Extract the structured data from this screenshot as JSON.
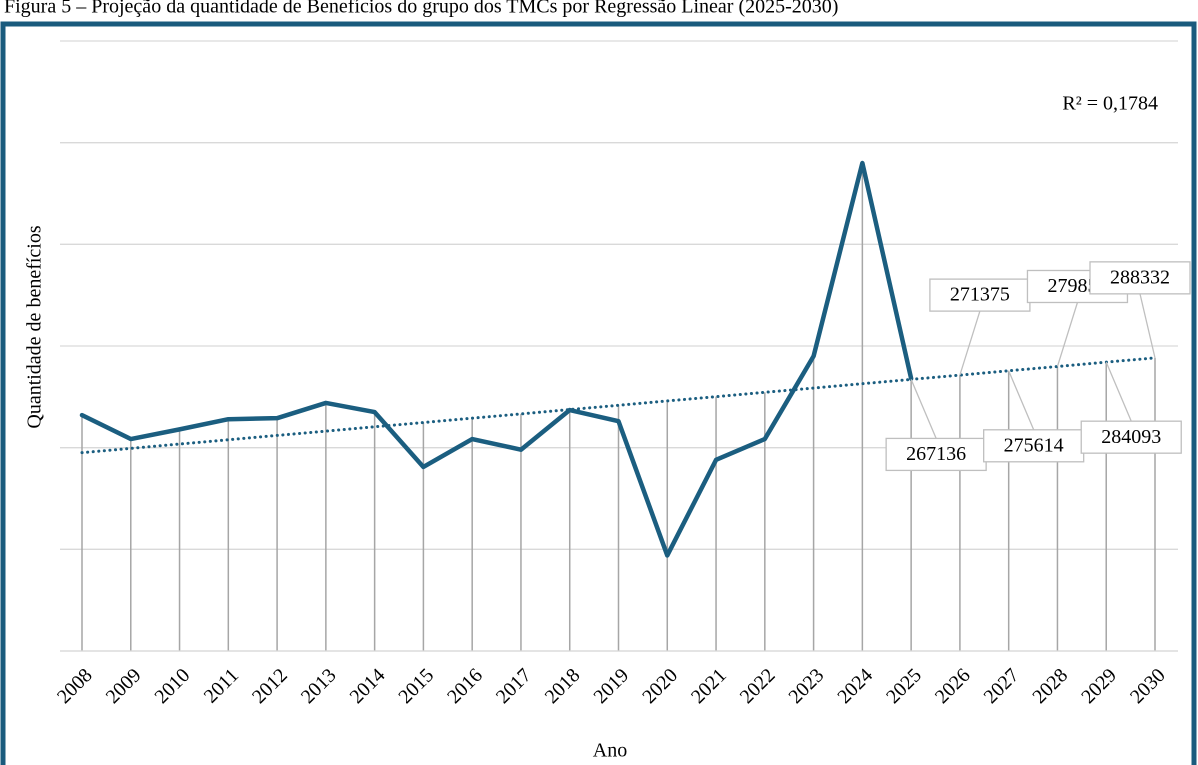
{
  "chart_data": {
    "type": "line",
    "title": "Figura 5 – Projeção da quantidade de Benefícios do grupo dos TMCs por Regressão Linear (2025-2030)",
    "annotation": "R² = 0,1784",
    "xlabel": "Ano",
    "ylabel": "Quantidade de benefícios",
    "categories": [
      "2008",
      "2009",
      "2010",
      "2011",
      "2012",
      "2013",
      "2014",
      "2015",
      "2016",
      "2017",
      "2018",
      "2019",
      "2020",
      "2021",
      "2022",
      "2023",
      "2024",
      "2025",
      "2026",
      "2027",
      "2028",
      "2029",
      "2030"
    ],
    "series": [
      {
        "color": "#1b5e80",
        "style": "solid",
        "values": [
          232000,
          208500,
          218000,
          228000,
          229000,
          244000,
          235000,
          181000,
          208500,
          198000,
          237000,
          226000,
          94000,
          188000,
          208500,
          290000,
          480000,
          268000,
          null,
          null,
          null,
          null,
          null
        ]
      },
      {
        "color": "#1b5e80",
        "style": "dotted",
        "values": [
          195070,
          199309,
          203548,
          207788,
          212027,
          216266,
          220505,
          224745,
          228984,
          233223,
          237462,
          241702,
          245941,
          250180,
          254419,
          258658,
          262897,
          267136,
          null,
          null,
          null,
          null,
          null
        ]
      },
      {
        "color": "#1b5e80",
        "style": "dotted",
        "data_labels": true,
        "values": [
          null,
          null,
          null,
          null,
          null,
          null,
          null,
          null,
          null,
          null,
          null,
          null,
          null,
          null,
          null,
          null,
          null,
          267136,
          271375,
          275614,
          279854,
          284093,
          288332
        ]
      }
    ],
    "ylim": [
      0,
      600000
    ],
    "yticks": [
      0,
      100000,
      200000,
      300000,
      400000,
      500000,
      600000
    ],
    "grid": true,
    "drop_lines": true
  }
}
